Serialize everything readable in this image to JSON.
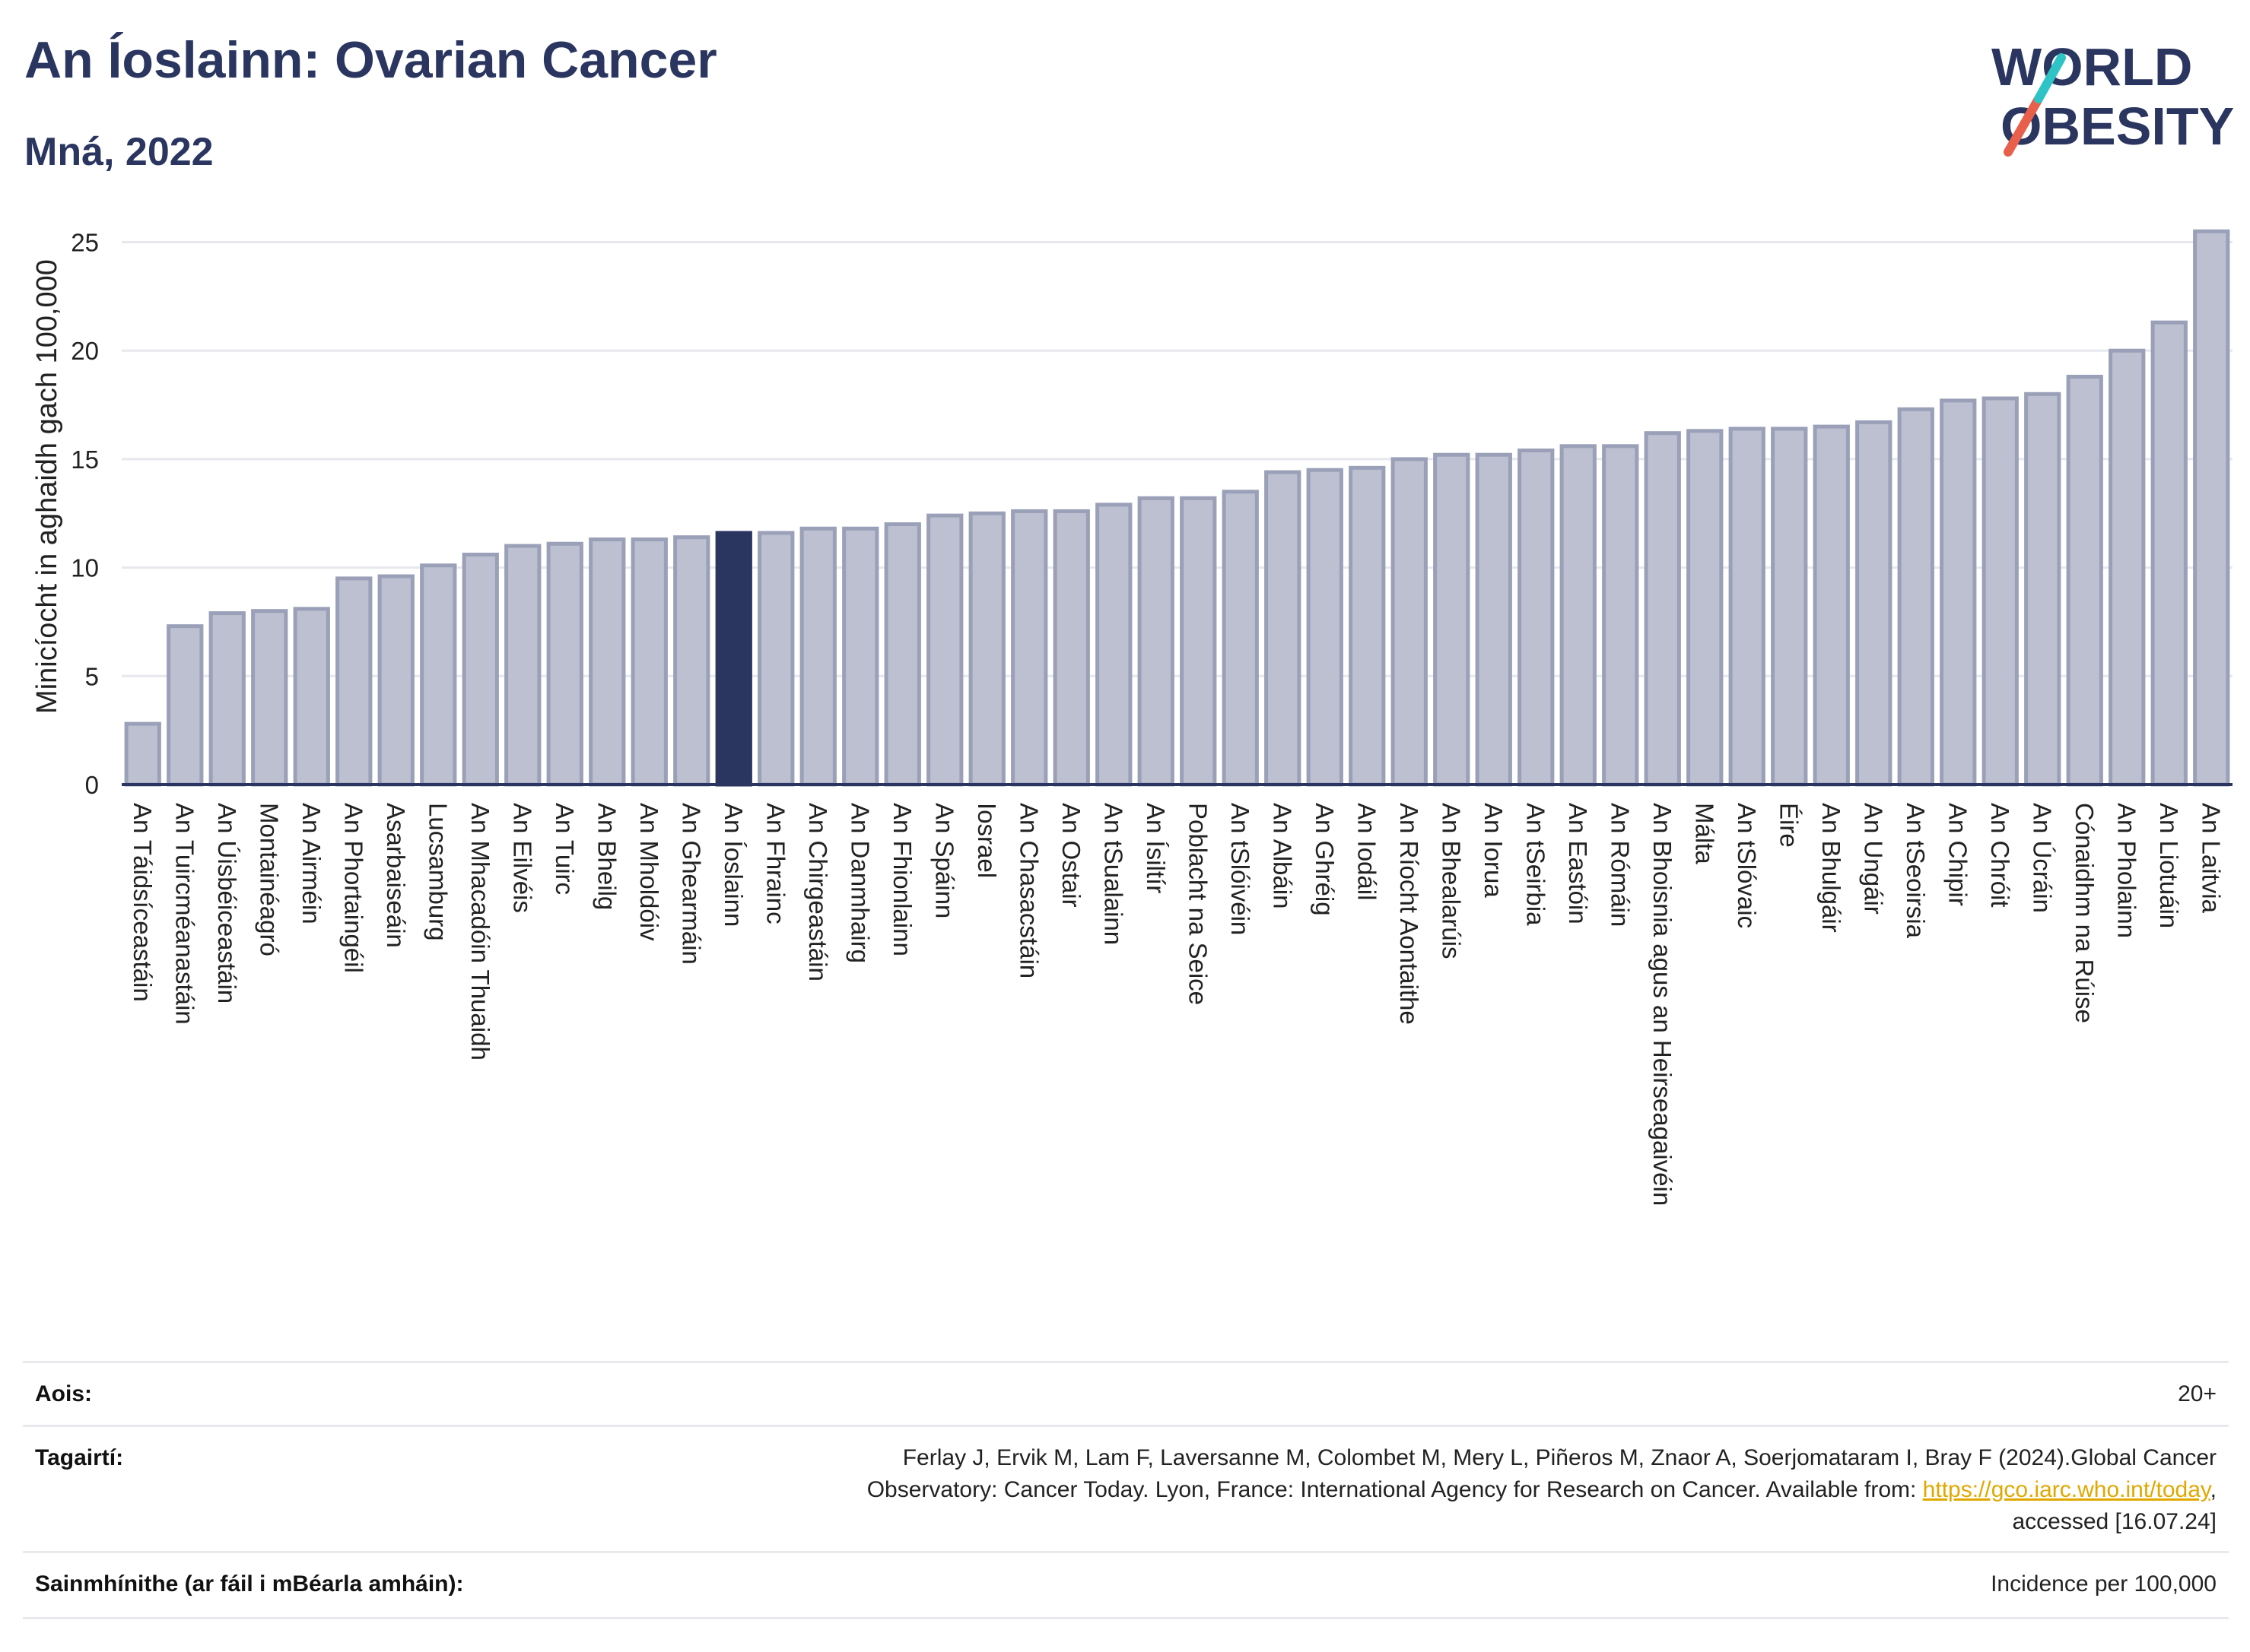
{
  "header": {
    "title": "An Íoslainn: Ovarian Cancer",
    "subtitle": "Mná, 2022"
  },
  "logo": {
    "line1": "WORLD",
    "line2": "OBESITY",
    "colors": {
      "navy": "#2a3560",
      "teal": "#2ec4c6",
      "coral": "#e8604c"
    }
  },
  "colors": {
    "bar": "#bcc0d0",
    "bar_border": "#9aa0b8",
    "highlight": "#2a3560",
    "axis": "#2a3560",
    "grid": "#e6e8ee"
  },
  "chart_data": {
    "type": "bar",
    "title": "An Íoslainn: Ovarian Cancer",
    "subtitle": "Mná, 2022",
    "ylabel": "Minicíocht in aghaidh gach 100,000",
    "xlabel": "",
    "ylim": [
      0,
      26
    ],
    "yticks": [
      0,
      5,
      10,
      15,
      20,
      25
    ],
    "grid": true,
    "highlight": "An Íoslainn",
    "categories": [
      "An Táidsíceastáin",
      "An Tuircméanastáin",
      "An Úisbéiceastáin",
      "Montainéagró",
      "An Airméin",
      "An Phortaingéil",
      "Asarbaiseáin",
      "Lucsamburg",
      "An Mhacadóin Thuaidh",
      "An Eilvéis",
      "An Tuirc",
      "An Bheilg",
      "An Mholdóiv",
      "An Ghearmáin",
      "An Íoslainn",
      "An Fhrainc",
      "An Chirgeastáin",
      "An Danmhairg",
      "An Fhionlainn",
      "An Spáinn",
      "Iosrael",
      "An Chasacstáin",
      "An Ostair",
      "An tSualainn",
      "An Ísiltír",
      "Poblacht na Seice",
      "An tSlóivéin",
      "An Albáin",
      "An Ghréig",
      "An Iodáil",
      "An Ríocht Aontaithe",
      "An Bhealarúis",
      "An Iorua",
      "An tSeirbia",
      "An Eastóin",
      "An Rómáin",
      "An Bhoisnia agus an Heirseagaivéin",
      "Málta",
      "An tSlóvaic",
      "Éire",
      "An Bhulgáir",
      "An Ungáir",
      "An tSeoirsia",
      "An Chipir",
      "An Chróit",
      "An Úcráin",
      "Cónaidhm na Rúise",
      "An Pholainn",
      "An Liotuáin",
      "An Laitvia"
    ],
    "values": [
      2.8,
      7.3,
      7.9,
      8.0,
      8.1,
      9.5,
      9.6,
      10.1,
      10.6,
      11.0,
      11.1,
      11.3,
      11.3,
      11.4,
      11.6,
      11.6,
      11.8,
      11.8,
      12.0,
      12.4,
      12.5,
      12.6,
      12.6,
      12.9,
      13.2,
      13.2,
      13.5,
      14.4,
      14.5,
      14.6,
      15.0,
      15.2,
      15.2,
      15.4,
      15.6,
      15.6,
      16.2,
      16.3,
      16.4,
      16.4,
      16.5,
      16.7,
      17.3,
      17.7,
      17.8,
      18.0,
      18.8,
      20.0,
      21.3,
      25.5
    ]
  },
  "footer": {
    "rows": [
      {
        "label": "Aois:",
        "value": "20+"
      },
      {
        "label": "Tagairtí:",
        "value_line1": "Ferlay J, Ervik M, Lam F, Laversanne M, Colombet M, Mery L, Piñeros M, Znaor A, Soerjomataram I, Bray F (2024).Global Cancer",
        "value_line2_pre": "Observatory: Cancer Today. Lyon, France: International Agency for Research on Cancer. Available from: ",
        "value_link": "https://gco.iarc.who.int/today",
        "value_line2_post": ",",
        "value_line3": "accessed [16.07.24]"
      },
      {
        "label": "Sainmhínithe (ar fáil i mBéarla amháin):",
        "value": "Incidence per 100,000"
      }
    ]
  }
}
